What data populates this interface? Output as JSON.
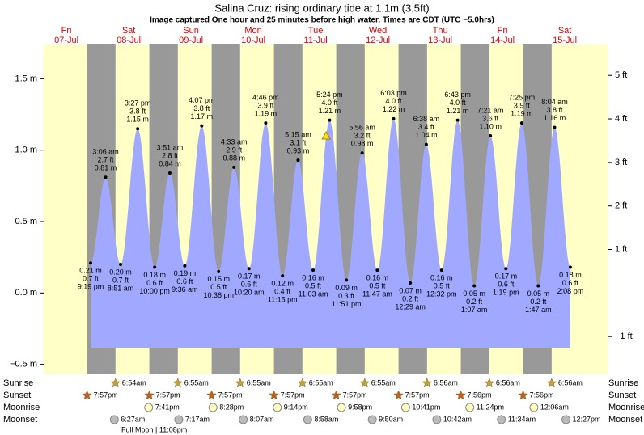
{
  "chart_data": {
    "type": "tide",
    "title": "Salina Cruz: rising  ordinary tide at 1.1m (3.5ft)",
    "subtitle": "Image captured One hour and 25 minutes before high water. Times are CDT (UTC −5.0hrs)",
    "current": {
      "value": 1.1,
      "day": "Tue"
    },
    "ylim": [
      -0.57,
      1.74
    ],
    "yticks": [
      {
        "value": -0.5,
        "label": "−0.5 m"
      },
      {
        "value": 0,
        "label": "0.0 m"
      },
      {
        "value": 0.5,
        "label": "0.5 m"
      },
      {
        "value": 1.0,
        "label": "1.0 m"
      },
      {
        "value": 1.5,
        "label": "1.5 m"
      }
    ],
    "y2lim": [
      -1.87,
      5.71
    ],
    "y2ticks": [
      {
        "value": -1,
        "label": "−1 ft"
      },
      {
        "value": 1,
        "label": "1 ft"
      },
      {
        "value": 2,
        "label": "2 ft"
      },
      {
        "value": 3,
        "label": "3 ft"
      },
      {
        "value": 4,
        "label": "4 ft"
      },
      {
        "value": 5,
        "label": "5 ft"
      }
    ],
    "row_labels": {
      "sunrise": "Sunrise",
      "sunset": "Sunset",
      "moonrise": "Moonrise",
      "moonset": "Moonset"
    },
    "full_moon": "Full Moon | 11:08pm",
    "days": [
      {
        "weekday": "Fri",
        "date": "07-Jul",
        "sunset": "7:57pm",
        "extremes": [
          {
            "time": "9:19 pm",
            "ft": "0.7 ft",
            "value": 0.21,
            "value_label": "0.21 m"
          }
        ]
      },
      {
        "weekday": "Sat",
        "date": "08-Jul",
        "sunrise": "6:54am",
        "sunset": "7:57pm",
        "moonrise": "7:41pm",
        "moonset": "6:27am",
        "extremes": [
          {
            "time": "3:06 am",
            "ft": "2.7 ft",
            "value": 0.81,
            "value_label": "0.81 m"
          },
          {
            "time": "8:51 am",
            "ft": "0.7 ft",
            "value": 0.2,
            "value_label": "0.20 m"
          },
          {
            "time": "3:27 pm",
            "ft": "3.8 ft",
            "value": 1.15,
            "value_label": "1.15 m"
          },
          {
            "time": "10:00 pm",
            "ft": "0.6 ft",
            "value": 0.18,
            "value_label": "0.18 m"
          }
        ]
      },
      {
        "weekday": "Sun",
        "date": "09-Jul",
        "sunrise": "6:55am",
        "sunset": "7:57pm",
        "moonrise": "8:28pm",
        "moonset": "7:17am",
        "extremes": [
          {
            "time": "3:51 am",
            "ft": "2.8 ft",
            "value": 0.84,
            "value_label": "0.84 m"
          },
          {
            "time": "9:36 am",
            "ft": "0.6 ft",
            "value": 0.19,
            "value_label": "0.19 m"
          },
          {
            "time": "4:07 pm",
            "ft": "3.8 ft",
            "value": 1.17,
            "value_label": "1.17 m"
          },
          {
            "time": "10:38 pm",
            "ft": "0.5 ft",
            "value": 0.15,
            "value_label": "0.15 m"
          }
        ]
      },
      {
        "weekday": "Mon",
        "date": "10-Jul",
        "sunrise": "6:55am",
        "sunset": "7:57pm",
        "moonrise": "9:14pm",
        "moonset": "8:07am",
        "extremes": [
          {
            "time": "4:33 am",
            "ft": "2.9 ft",
            "value": 0.88,
            "value_label": "0.88 m"
          },
          {
            "time": "10:20 am",
            "ft": "0.6 ft",
            "value": 0.17,
            "value_label": "0.17 m"
          },
          {
            "time": "4:46 pm",
            "ft": "3.9 ft",
            "value": 1.19,
            "value_label": "1.19 m"
          },
          {
            "time": "11:15 pm",
            "ft": "0.4 ft",
            "value": 0.12,
            "value_label": "0.12 m"
          }
        ]
      },
      {
        "weekday": "Tue",
        "date": "11-Jul",
        "sunrise": "6:55am",
        "sunset": "7:57pm",
        "moonrise": "9:58pm",
        "moonset": "8:58am",
        "extremes": [
          {
            "time": "5:15 am",
            "ft": "3.1 ft",
            "value": 0.93,
            "value_label": "0.93 m"
          },
          {
            "time": "11:03 am",
            "ft": "0.5 ft",
            "value": 0.16,
            "value_label": "0.16 m"
          },
          {
            "time": "5:24 pm",
            "ft": "4.0 ft",
            "value": 1.21,
            "value_label": "1.21 m"
          },
          {
            "time": "11:51 pm",
            "ft": "0.3 ft",
            "value": 0.09,
            "value_label": "0.09 m"
          }
        ]
      },
      {
        "weekday": "Wed",
        "date": "12-Jul",
        "sunrise": "6:55am",
        "sunset": "7:57pm",
        "moonrise": "10:41pm",
        "moonset": "9:50am",
        "extremes": [
          {
            "time": "5:56 am",
            "ft": "3.2 ft",
            "value": 0.98,
            "value_label": "0.98 m"
          },
          {
            "time": "11:47 am",
            "ft": "0.5 ft",
            "value": 0.16,
            "value_label": "0.16 m"
          },
          {
            "time": "6:03 pm",
            "ft": "4.0 ft",
            "value": 1.22,
            "value_label": "1.22 m"
          }
        ]
      },
      {
        "weekday": "Thu",
        "date": "13-Jul",
        "sunrise": "6:56am",
        "sunset": "7:56pm",
        "moonrise": "11:24pm",
        "moonset": "10:42am",
        "extremes": [
          {
            "time": "12:29 am",
            "ft": "0.2 ft",
            "value": 0.07,
            "value_label": "0.07 m"
          },
          {
            "time": "6:38 am",
            "ft": "3.4 ft",
            "value": 1.04,
            "value_label": "1.04 m"
          },
          {
            "time": "12:32 pm",
            "ft": "0.5 ft",
            "value": 0.16,
            "value_label": "0.16 m"
          },
          {
            "time": "6:43 pm",
            "ft": "4.0 ft",
            "value": 1.21,
            "value_label": "1.21 m"
          }
        ]
      },
      {
        "weekday": "Fri",
        "date": "14-Jul",
        "sunrise": "6:56am",
        "sunset": "7:56pm",
        "moonset": "11:34am",
        "extremes": [
          {
            "time": "1:07 am",
            "ft": "0.2 ft",
            "value": 0.05,
            "value_label": "0.05 m"
          },
          {
            "time": "7:21 am",
            "ft": "3.6 ft",
            "value": 1.1,
            "value_label": "1.10 m"
          },
          {
            "time": "1:19 pm",
            "ft": "0.6 ft",
            "value": 0.17,
            "value_label": "0.17 m"
          },
          {
            "time": "7:25 pm",
            "ft": "3.9 ft",
            "value": 1.19,
            "value_label": "1.19 m"
          }
        ]
      },
      {
        "weekday": "Sat",
        "date": "15-Jul",
        "sunrise": "6:56am",
        "moonrise": "12:06am",
        "moonset": "12:27pm",
        "extremes": [
          {
            "time": "1:47 am",
            "ft": "0.2 ft",
            "value": 0.05,
            "value_label": "0.05 m"
          },
          {
            "time": "8:04 am",
            "ft": "3.8 ft",
            "value": 1.16,
            "value_label": "1.16 m"
          },
          {
            "time": "2:08 pm",
            "ft": "0.6 ft",
            "value": 0.18,
            "value_label": "0.18 m"
          }
        ]
      }
    ]
  }
}
